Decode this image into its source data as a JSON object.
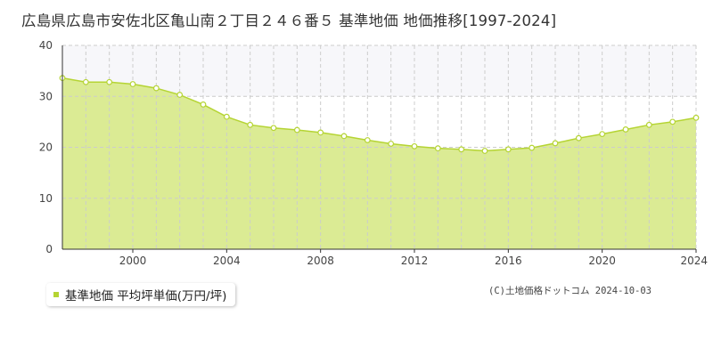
{
  "title": "広島県広島市安佐北区亀山南２丁目２４６番５ 基準地価 地価推移[1997-2024]",
  "legend": {
    "label": "基準地価 平均坪単価(万円/坪)"
  },
  "copyright": "(C)土地価格ドットコム 2024-10-03",
  "colors": {
    "fill": "#dbeb94",
    "line": "#b5d433",
    "band": "#f7f7fa",
    "grid": "#cccccc"
  },
  "chart_data": {
    "type": "area",
    "title": "",
    "xlabel": "",
    "ylabel": "",
    "xlim": [
      1997,
      2024
    ],
    "ylim": [
      0,
      40
    ],
    "x_ticks": [
      "2000",
      "2004",
      "2008",
      "2012",
      "2016",
      "2020",
      "2024"
    ],
    "y_ticks": [
      "0",
      "10",
      "20",
      "30",
      "40"
    ],
    "grid": true,
    "legend_position": "bottom-left",
    "series": [
      {
        "name": "基準地価 平均坪単価(万円/坪)",
        "x": [
          1997,
          1998,
          1999,
          2000,
          2001,
          2002,
          2003,
          2004,
          2005,
          2006,
          2007,
          2008,
          2009,
          2010,
          2011,
          2012,
          2013,
          2014,
          2015,
          2016,
          2017,
          2018,
          2019,
          2020,
          2021,
          2022,
          2023,
          2024
        ],
        "values": [
          33.6,
          32.8,
          32.8,
          32.4,
          31.6,
          30.3,
          28.4,
          26.0,
          24.4,
          23.8,
          23.4,
          22.9,
          22.2,
          21.4,
          20.7,
          20.2,
          19.8,
          19.6,
          19.3,
          19.6,
          19.9,
          20.8,
          21.8,
          22.6,
          23.5,
          24.4,
          25.0,
          25.8
        ]
      }
    ]
  }
}
